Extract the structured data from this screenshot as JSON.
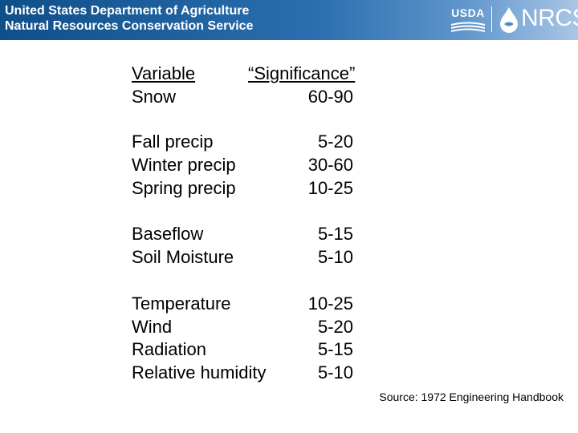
{
  "header": {
    "line1": "United States Department of Agriculture",
    "line2": "Natural Resources Conservation Service",
    "usda_logo_text": "USDA",
    "nrcs_logo_text": "NRCS",
    "banner_color": "#1f5f9e"
  },
  "table": {
    "col_variable": "Variable",
    "col_significance": "“Significance”",
    "rows": [
      {
        "variable": "Snow",
        "significance": "60-90"
      },
      {
        "variable": "Fall precip",
        "significance": "5-20"
      },
      {
        "variable": "Winter precip",
        "significance": "30-60"
      },
      {
        "variable": "Spring precip",
        "significance": "10-25"
      },
      {
        "variable": "Baseflow",
        "significance": "5-15"
      },
      {
        "variable": "Soil Moisture",
        "significance": "5-10"
      },
      {
        "variable": "Temperature",
        "significance": "10-25"
      },
      {
        "variable": "Wind",
        "significance": "5-20"
      },
      {
        "variable": "Radiation",
        "significance": "5-15"
      },
      {
        "variable": "Relative humidity",
        "significance": "5-10"
      }
    ]
  },
  "source": "Source: 1972 Engineering Handbook"
}
